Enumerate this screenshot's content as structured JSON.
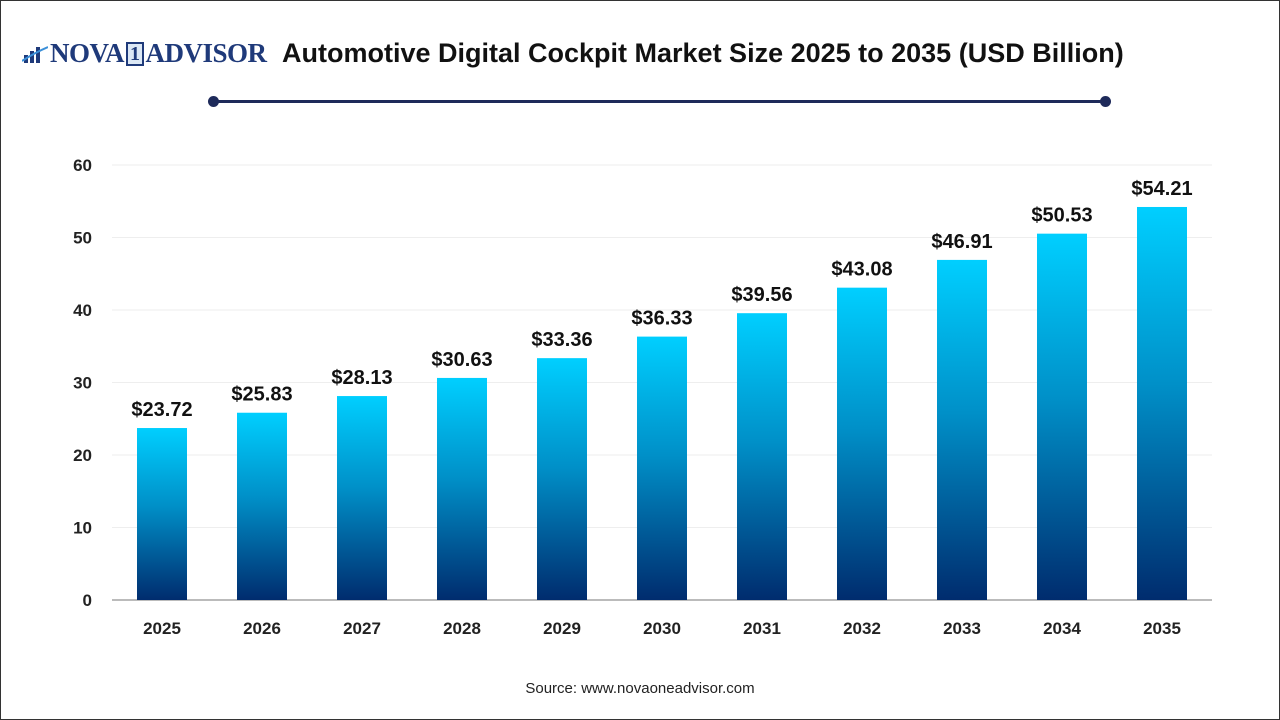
{
  "logo": {
    "text_pre": "NOVA",
    "text_num": "1",
    "text_post": "ADVISOR"
  },
  "title": "Automotive Digital Cockpit Market Size 2025 to 2035 (USD Billion)",
  "source": "Source: www.novaoneadvisor.com",
  "colors": {
    "bar_top": "#00cfff",
    "bar_bottom": "#002c6e",
    "title_rule": "#1e2a5a",
    "grid": "#eeeeee",
    "axis": "#bbbbbb"
  },
  "chart_data": {
    "type": "bar",
    "title": "Automotive Digital Cockpit Market Size 2025 to 2035 (USD Billion)",
    "categories": [
      "2025",
      "2026",
      "2027",
      "2028",
      "2029",
      "2030",
      "2031",
      "2032",
      "2033",
      "2034",
      "2035"
    ],
    "values": [
      23.72,
      25.83,
      28.13,
      30.63,
      33.36,
      36.33,
      39.56,
      43.08,
      46.91,
      50.53,
      54.21
    ],
    "data_labels": [
      "$23.72",
      "$25.83",
      "$28.13",
      "$30.63",
      "$33.36",
      "$36.33",
      "$39.56",
      "$43.08",
      "$46.91",
      "$50.53",
      "$54.21"
    ],
    "yticks": [
      "0",
      "10",
      "20",
      "30",
      "40",
      "50",
      "60"
    ],
    "ylim": [
      0,
      60
    ],
    "xlabel": "",
    "ylabel": "",
    "grid": true,
    "legend": "none"
  }
}
